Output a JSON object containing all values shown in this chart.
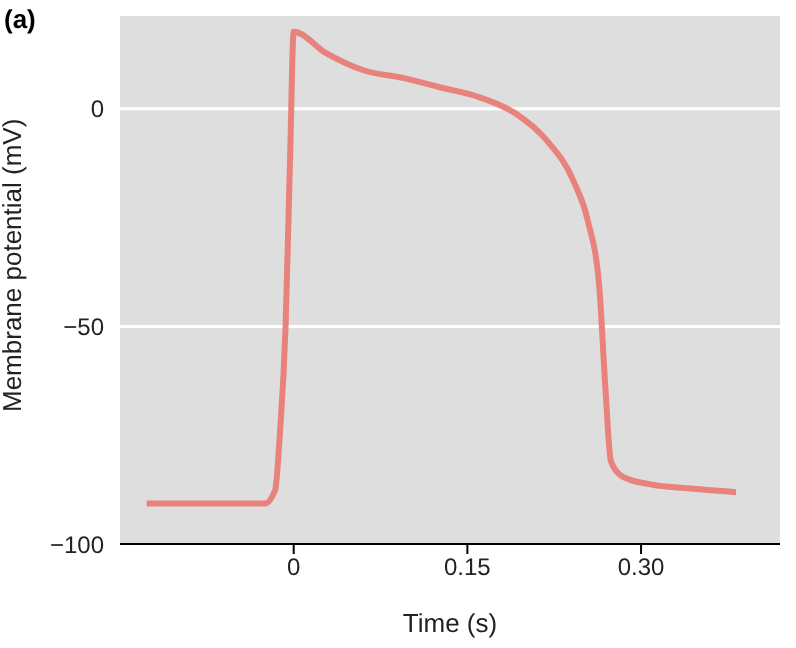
{
  "chart_data": {
    "type": "line",
    "title": "(a)",
    "xlabel": "Time (s)",
    "ylabel": "Membrane potential (mV)",
    "x": [
      -0.127,
      -0.025,
      -0.016,
      -0.012,
      -0.007,
      -0.003,
      0,
      0.028,
      0.061,
      0.094,
      0.127,
      0.16,
      0.193,
      0.218,
      0.242,
      0.254,
      0.264,
      0.269,
      0.274,
      0.284,
      0.308,
      0.341,
      0.382
    ],
    "series": [
      {
        "color": "#e8827c",
        "values": [
          -90.7,
          -90.7,
          -87.6,
          -75,
          -50,
          -10,
          17.7,
          12.8,
          8.8,
          7.1,
          4.9,
          2.7,
          -1.3,
          -7.1,
          -16.8,
          -25.7,
          -41.2,
          -63.3,
          -81,
          -84.5,
          -86.3,
          -87.2,
          -88.1
        ]
      }
    ],
    "xlim": [
      -0.15,
      0.42
    ],
    "xticks": [
      {
        "value": 0,
        "label": "0"
      },
      0.15,
      {
        "value": 0.3,
        "label": "0.30"
      }
    ],
    "ylim": [
      -100,
      25
    ],
    "yticks": [
      -100,
      -50,
      0
    ],
    "grid": "y",
    "marker": "none",
    "line_style": "solid"
  }
}
